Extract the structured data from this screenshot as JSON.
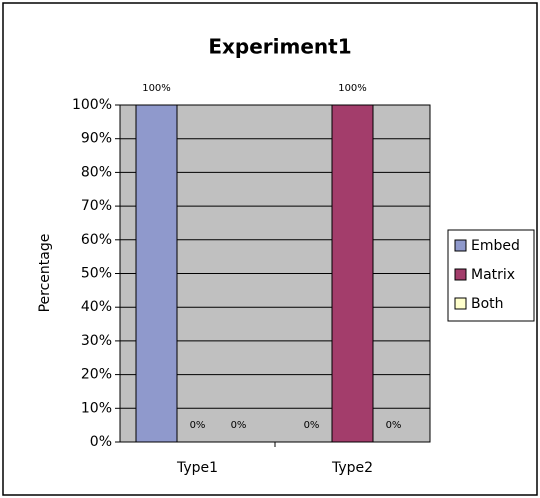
{
  "chart_data": {
    "type": "bar",
    "title": "Experiment1",
    "y_label": "Percentage",
    "categories": [
      "Type1",
      "Type2"
    ],
    "series": [
      {
        "name": "Embed",
        "color": "#8f99cc",
        "values": [
          100,
          0
        ],
        "value_labels": [
          "100%",
          "0%"
        ]
      },
      {
        "name": "Matrix",
        "color": "#a33d6b",
        "values": [
          0,
          100
        ],
        "value_labels": [
          "0%",
          "100%"
        ]
      },
      {
        "name": "Both",
        "color": "#ffffcc",
        "values": [
          0,
          0
        ],
        "value_labels": [
          "0%",
          "0%"
        ]
      }
    ],
    "ylim": [
      0,
      100
    ],
    "yticks": [
      {
        "value": 0,
        "label": "0%"
      },
      {
        "value": 10,
        "label": "10%"
      },
      {
        "value": 20,
        "label": "20%"
      },
      {
        "value": 30,
        "label": "30%"
      },
      {
        "value": 40,
        "label": "40%"
      },
      {
        "value": 50,
        "label": "50%"
      },
      {
        "value": 60,
        "label": "60%"
      },
      {
        "value": 70,
        "label": "70%"
      },
      {
        "value": 80,
        "label": "80%"
      },
      {
        "value": 90,
        "label": "90%"
      },
      {
        "value": 100,
        "label": "100%"
      }
    ],
    "grid": true,
    "plot_background": "#c0c0c0",
    "legend": "right"
  }
}
